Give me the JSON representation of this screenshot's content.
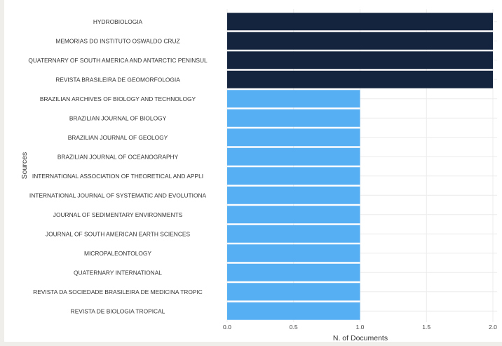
{
  "chart_data": {
    "type": "bar",
    "orientation": "horizontal",
    "xlabel": "N. of Documents",
    "ylabel": "Sources",
    "xlim": [
      0,
      2
    ],
    "xticks": [
      "0.0",
      "0.5",
      "1.0",
      "1.5",
      "2.0"
    ],
    "grid": true,
    "colors": {
      "high": "#14243f",
      "low": "#56aef3"
    },
    "categories": [
      "HYDROBIOLOGIA",
      "MEMORIAS DO INSTITUTO OSWALDO CRUZ",
      "QUATERNARY OF SOUTH AMERICA AND ANTARCTIC PENINSUL",
      "REVISTA BRASILEIRA DE GEOMORFOLOGIA",
      "BRAZILIAN ARCHIVES OF BIOLOGY AND TECHNOLOGY",
      "BRAZILIAN JOURNAL OF BIOLOGY",
      "BRAZILIAN JOURNAL OF GEOLOGY",
      "BRAZILIAN JOURNAL OF OCEANOGRAPHY",
      "INTERNATIONAL ASSOCIATION OF THEORETICAL AND APPLI",
      "INTERNATIONAL JOURNAL OF SYSTEMATIC AND EVOLUTIONA",
      "JOURNAL OF SEDIMENTARY ENVIRONMENTS",
      "JOURNAL OF SOUTH AMERICAN EARTH SCIENCES",
      "MICROPALEONTOLOGY",
      "QUATERNARY INTERNATIONAL",
      "REVISTA DA SOCIEDADE BRASILEIRA DE MEDICINA TROPIC",
      "REVISTA DE BIOLOGIA TROPICAL"
    ],
    "values": [
      2,
      2,
      2,
      2,
      1,
      1,
      1,
      1,
      1,
      1,
      1,
      1,
      1,
      1,
      1,
      1
    ]
  }
}
